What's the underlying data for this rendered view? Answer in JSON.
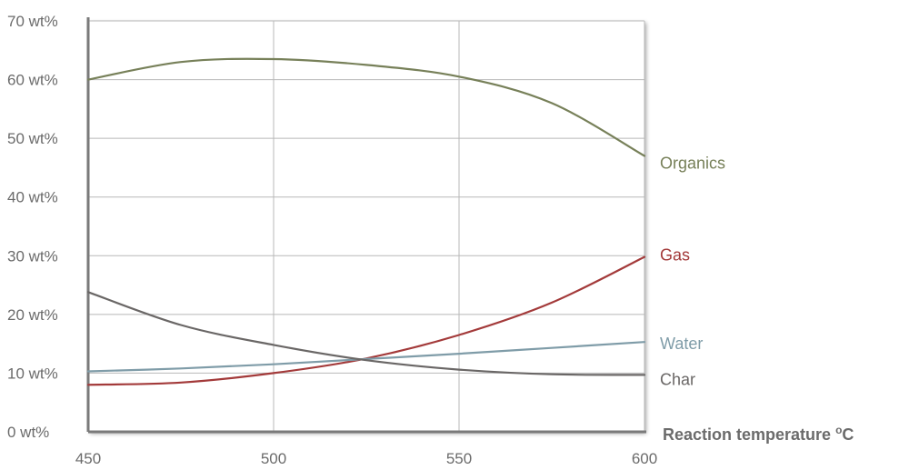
{
  "chart_data": {
    "type": "line",
    "title": "",
    "xlabel": "Reaction temperature",
    "xlabel_unit": "oC",
    "ylabel": "",
    "xlim": [
      450,
      600
    ],
    "ylim": [
      0,
      70
    ],
    "x_ticks": [
      450,
      500,
      550,
      600
    ],
    "y_ticks": [
      0,
      10,
      20,
      30,
      40,
      50,
      60,
      70
    ],
    "y_tick_labels": [
      "0 wt%",
      "10 wt%",
      "20 wt%",
      "30 wt%",
      "40 wt%",
      "50 wt%",
      "60 wt%",
      "70 wt%"
    ],
    "grid": true,
    "legend": "inline labels at right end of each line",
    "x": [
      450,
      475,
      500,
      525,
      550,
      575,
      600
    ],
    "series": [
      {
        "name": "Organics",
        "color": "#778059",
        "values": [
          60,
          63,
          63.5,
          62.5,
          60.5,
          56,
          47
        ]
      },
      {
        "name": "Gas",
        "color": "#a33a3a",
        "values": [
          8,
          8.4,
          10,
          12.5,
          16.5,
          22,
          29.8
        ]
      },
      {
        "name": "Water",
        "color": "#7f9ca8",
        "values": [
          10.3,
          10.8,
          11.5,
          12.4,
          13.3,
          14.3,
          15.3
        ]
      },
      {
        "name": "Char",
        "color": "#6a6766",
        "values": [
          23.8,
          18.2,
          14.8,
          12.2,
          10.6,
          9.8,
          9.7
        ]
      }
    ]
  }
}
